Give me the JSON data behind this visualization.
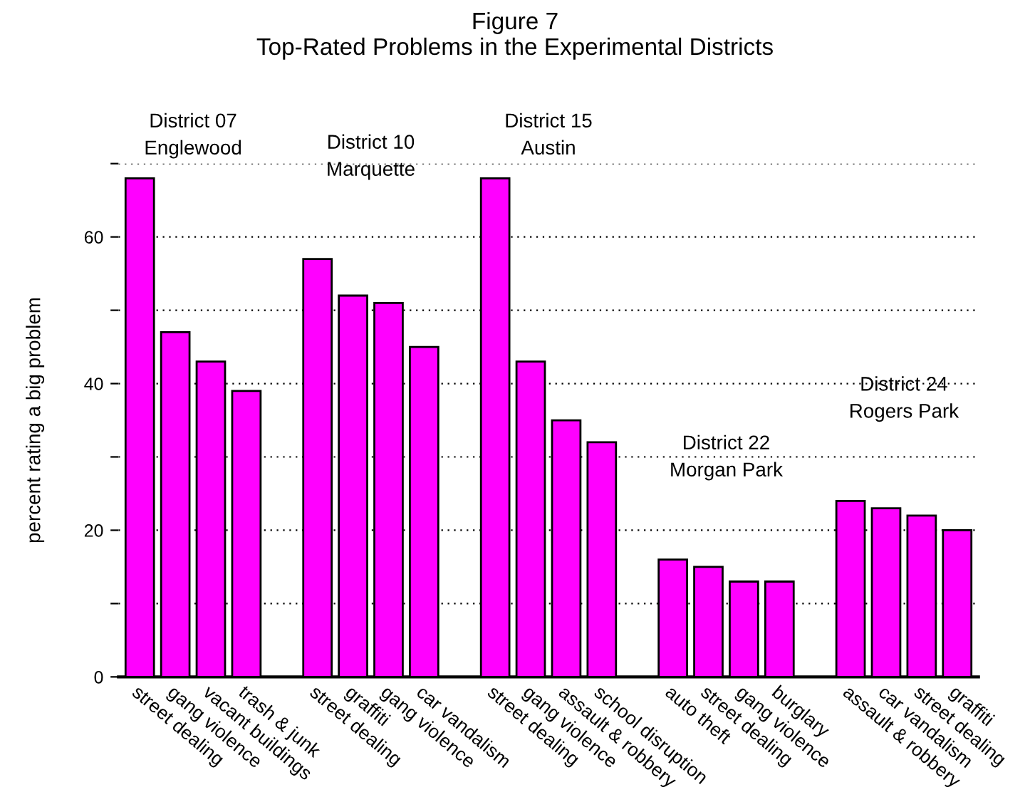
{
  "chart_data": {
    "type": "bar",
    "title": "Figure 7\nTop-Rated Problems in the Experimental Districts",
    "ylabel": "percent rating a big problem",
    "categories": [
      "street dealing",
      "gang violence",
      "vacant buildings",
      "trash & junk",
      null,
      "street dealing",
      "graffiti",
      "gang violence",
      "car vandalism",
      null,
      "street dealing",
      "gang violence",
      "assault & robbery",
      "school disruption",
      null,
      "auto theft",
      "street dealing",
      "gang violence",
      "burglary",
      null,
      "assault & robbery",
      "car vandalism",
      "street dealing",
      "graffiti"
    ],
    "values": [
      68,
      47,
      43,
      39,
      null,
      57,
      52,
      51,
      45,
      null,
      68,
      43,
      35,
      32,
      null,
      16,
      15,
      13,
      13,
      null,
      24,
      23,
      22,
      20
    ],
    "color": "#ff00ff",
    "ylim": [
      0,
      70
    ],
    "yticks": [
      0,
      {
        "value": 10,
        "label": null
      },
      20,
      {
        "value": 30,
        "label": null
      },
      40,
      {
        "value": 50,
        "label": null
      },
      60,
      {
        "value": 70,
        "label": null
      }
    ],
    "grid": "y",
    "annotations": [
      "District 07\nEnglewood",
      "District 10\nMarquette",
      "District 15\nAustin",
      "District 22\nMorgan Park",
      "District 24\nRogers Park"
    ]
  }
}
